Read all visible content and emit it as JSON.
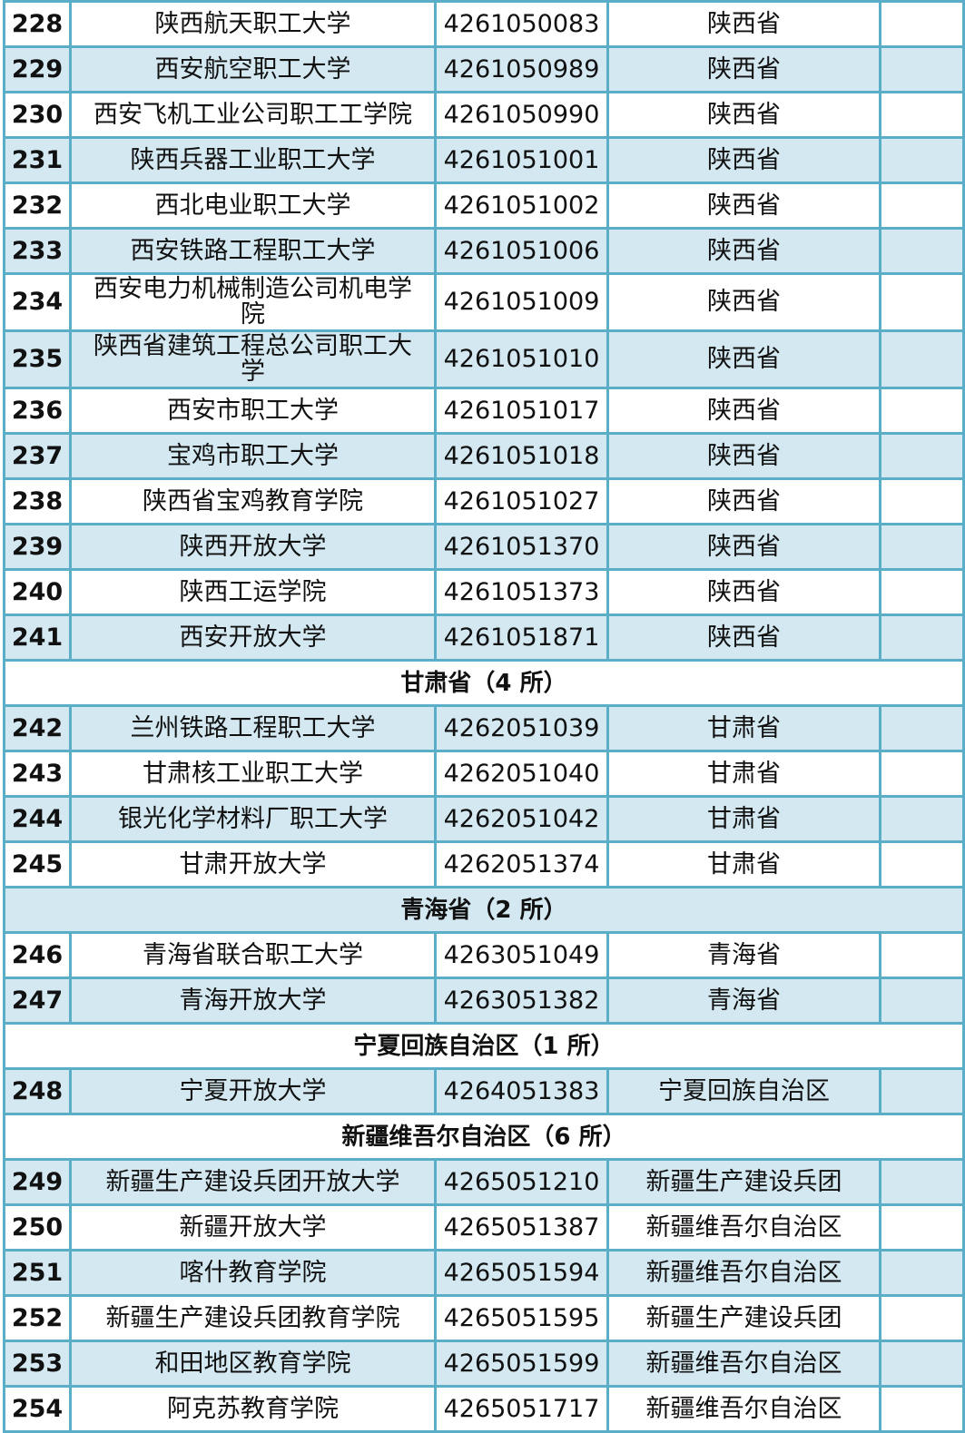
{
  "rows": [
    {
      "type": "item",
      "no": "228",
      "name": "陕西航天职工大学",
      "code": "4261050083",
      "region": "陕西省"
    },
    {
      "type": "item",
      "no": "229",
      "name": "西安航空职工大学",
      "code": "4261050989",
      "region": "陕西省"
    },
    {
      "type": "item",
      "no": "230",
      "name": "西安飞机工业公司职工工学院",
      "code": "4261050990",
      "region": "陕西省"
    },
    {
      "type": "item",
      "no": "231",
      "name": "陕西兵器工业职工大学",
      "code": "4261051001",
      "region": "陕西省"
    },
    {
      "type": "item",
      "no": "232",
      "name": "西北电业职工大学",
      "code": "4261051002",
      "region": "陕西省"
    },
    {
      "type": "item",
      "no": "233",
      "name": "西安铁路工程职工大学",
      "code": "4261051006",
      "region": "陕西省"
    },
    {
      "type": "item",
      "no": "234",
      "name": "西安电力机械制造公司机电学院",
      "code": "4261051009",
      "region": "陕西省",
      "tall": true
    },
    {
      "type": "item",
      "no": "235",
      "name": "陕西省建筑工程总公司职工大学",
      "code": "4261051010",
      "region": "陕西省",
      "tall": true
    },
    {
      "type": "item",
      "no": "236",
      "name": "西安市职工大学",
      "code": "4261051017",
      "region": "陕西省"
    },
    {
      "type": "item",
      "no": "237",
      "name": "宝鸡市职工大学",
      "code": "4261051018",
      "region": "陕西省"
    },
    {
      "type": "item",
      "no": "238",
      "name": "陕西省宝鸡教育学院",
      "code": "4261051027",
      "region": "陕西省"
    },
    {
      "type": "item",
      "no": "239",
      "name": "陕西开放大学",
      "code": "4261051370",
      "region": "陕西省"
    },
    {
      "type": "item",
      "no": "240",
      "name": "陕西工运学院",
      "code": "4261051373",
      "region": "陕西省"
    },
    {
      "type": "item",
      "no": "241",
      "name": "西安开放大学",
      "code": "4261051871",
      "region": "陕西省"
    },
    {
      "type": "section",
      "title": "甘肃省（4 所）"
    },
    {
      "type": "item",
      "no": "242",
      "name": "兰州铁路工程职工大学",
      "code": "4262051039",
      "region": "甘肃省"
    },
    {
      "type": "item",
      "no": "243",
      "name": "甘肃核工业职工大学",
      "code": "4262051040",
      "region": "甘肃省"
    },
    {
      "type": "item",
      "no": "244",
      "name": "银光化学材料厂职工大学",
      "code": "4262051042",
      "region": "甘肃省"
    },
    {
      "type": "item",
      "no": "245",
      "name": "甘肃开放大学",
      "code": "4262051374",
      "region": "甘肃省"
    },
    {
      "type": "section",
      "title": "青海省（2 所）"
    },
    {
      "type": "item",
      "no": "246",
      "name": "青海省联合职工大学",
      "code": "4263051049",
      "region": "青海省"
    },
    {
      "type": "item",
      "no": "247",
      "name": "青海开放大学",
      "code": "4263051382",
      "region": "青海省"
    },
    {
      "type": "section",
      "title": "宁夏回族自治区（1 所）"
    },
    {
      "type": "item",
      "no": "248",
      "name": "宁夏开放大学",
      "code": "4264051383",
      "region": "宁夏回族自治区"
    },
    {
      "type": "section",
      "title": "新疆维吾尔自治区（6 所）"
    },
    {
      "type": "item",
      "no": "249",
      "name": "新疆生产建设兵团开放大学",
      "code": "4265051210",
      "region": "新疆生产建设兵团"
    },
    {
      "type": "item",
      "no": "250",
      "name": "新疆开放大学",
      "code": "4265051387",
      "region": "新疆维吾尔自治区"
    },
    {
      "type": "item",
      "no": "251",
      "name": "喀什教育学院",
      "code": "4265051594",
      "region": "新疆维吾尔自治区"
    },
    {
      "type": "item",
      "no": "252",
      "name": "新疆生产建设兵团教育学院",
      "code": "4265051595",
      "region": "新疆生产建设兵团"
    },
    {
      "type": "item",
      "no": "253",
      "name": "和田地区教育学院",
      "code": "4265051599",
      "region": "新疆维吾尔自治区"
    },
    {
      "type": "item",
      "no": "254",
      "name": "阿克苏教育学院",
      "code": "4265051717",
      "region": "新疆维吾尔自治区"
    }
  ],
  "colors": {
    "border": "#5aaec8",
    "stripe": "#d3e8f1"
  }
}
